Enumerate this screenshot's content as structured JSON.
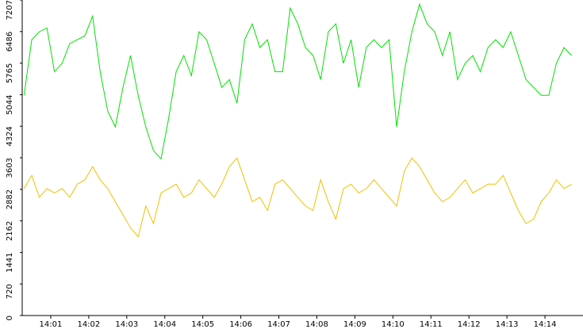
{
  "chart_data": {
    "type": "line",
    "x": [
      840.3,
      840.5,
      840.7,
      840.9,
      841.1,
      841.3,
      841.5,
      841.7,
      841.9,
      842.1,
      842.3,
      842.5,
      842.7,
      842.9,
      843.1,
      843.3,
      843.5,
      843.7,
      843.9,
      844.1,
      844.3,
      844.5,
      844.7,
      844.9,
      845.1,
      845.3,
      845.5,
      845.7,
      845.9,
      846.1,
      846.3,
      846.5,
      846.7,
      846.9,
      847.1,
      847.3,
      847.5,
      847.7,
      847.9,
      848.1,
      848.3,
      848.5,
      848.7,
      848.9,
      849.1,
      849.3,
      849.5,
      849.7,
      849.9,
      850.1,
      850.3,
      850.5,
      850.7,
      850.9,
      851.1,
      851.3,
      851.5,
      851.7,
      851.9,
      852.1,
      852.3,
      852.5,
      852.7,
      852.9,
      853.1,
      853.3,
      853.5,
      853.7,
      853.9,
      854.1,
      854.3,
      854.5,
      854.7
    ],
    "series": [
      {
        "color": "#00e000",
        "values": [
          5030,
          6300,
          6480,
          6570,
          5570,
          5760,
          6210,
          6300,
          6390,
          6840,
          5570,
          4670,
          4310,
          5210,
          5940,
          5030,
          4310,
          3770,
          3580,
          4490,
          5570,
          5940,
          5480,
          6480,
          6300,
          5760,
          5210,
          5390,
          4850,
          6300,
          6660,
          6120,
          6300,
          5570,
          5570,
          7020,
          6660,
          6120,
          5940,
          5390,
          6480,
          6660,
          5760,
          6300,
          5210,
          6120,
          6300,
          6120,
          6300,
          4310,
          5570,
          6480,
          7110,
          6660,
          6480,
          5940,
          6480,
          5390,
          5760,
          5940,
          5570,
          6120,
          6300,
          6120,
          6480,
          5940,
          5390,
          5210,
          5030,
          5030,
          5760,
          6120,
          5940
        ]
      },
      {
        "color": "#f0c000",
        "values": [
          2900,
          3200,
          2700,
          2900,
          2800,
          2900,
          2700,
          3000,
          3100,
          3400,
          3100,
          2900,
          2600,
          2300,
          2000,
          1800,
          2500,
          2100,
          2800,
          2900,
          3000,
          2700,
          2800,
          3100,
          2900,
          2700,
          3000,
          3400,
          3600,
          3100,
          2600,
          2700,
          2400,
          3000,
          3100,
          2900,
          2700,
          2500,
          2400,
          3100,
          2600,
          2200,
          2900,
          3000,
          2800,
          2900,
          3100,
          2900,
          2700,
          2500,
          3300,
          3600,
          3400,
          3100,
          2800,
          2600,
          2700,
          2900,
          3100,
          2800,
          2900,
          3000,
          3000,
          3200,
          2800,
          2400,
          2100,
          2200,
          2600,
          2800,
          3100,
          2900,
          3000
        ]
      }
    ],
    "xlim": [
      840.25,
      855
    ],
    "xticks": [
      {
        "value": 841,
        "label": "14:01"
      },
      {
        "value": 842,
        "label": "14:02"
      },
      {
        "value": 843,
        "label": "14:03"
      },
      {
        "value": 844,
        "label": "14:04"
      },
      {
        "value": 845,
        "label": "14:05"
      },
      {
        "value": 846,
        "label": "14:06"
      },
      {
        "value": 847,
        "label": "14:07"
      },
      {
        "value": 848,
        "label": "14:08"
      },
      {
        "value": 849,
        "label": "14:09"
      },
      {
        "value": 850,
        "label": "14:10"
      },
      {
        "value": 851,
        "label": "14:11"
      },
      {
        "value": 852,
        "label": "14:12"
      },
      {
        "value": 853,
        "label": "14:13"
      },
      {
        "value": 854,
        "label": "14:14"
      }
    ],
    "ylim": [
      0,
      7207
    ],
    "yticks": [
      0,
      720,
      1441,
      2162,
      2882,
      3603,
      4324,
      5044,
      5765,
      6486,
      7207
    ]
  }
}
